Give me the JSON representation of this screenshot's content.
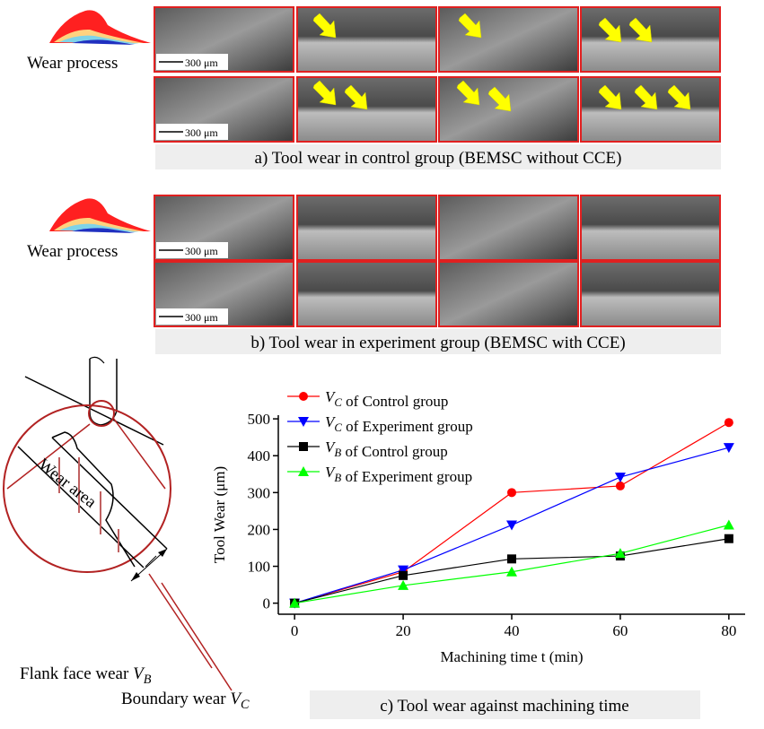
{
  "panels": [
    {
      "side_label": "Wear process",
      "scale_labels": [
        "300 μm",
        "300 μm"
      ],
      "caption": "a) Tool wear in control group (BEMSC without CCE)"
    },
    {
      "side_label": "Wear process",
      "scale_labels": [
        "300 μm",
        "300 μm"
      ],
      "caption": "b) Tool wear in experiment group (BEMSC with CCE)"
    }
  ],
  "diagram": {
    "wear_area": "Wear area",
    "flank_label": "Flank face wear VB",
    "boundary_label": "Boundary wear VC"
  },
  "chart_data": {
    "type": "line",
    "caption": "c) Tool wear against machining time",
    "x_label": "Machining time t (min)",
    "y_label": "Tool Wear (μm)",
    "x": [
      0,
      20,
      40,
      60,
      80
    ],
    "series": [
      {
        "name": "VC of Control group",
        "color": "#ff0000",
        "marker": "circle",
        "values": [
          0,
          85,
          300,
          318,
          490
        ]
      },
      {
        "name": "VC of Experiment group",
        "color": "#0000ff",
        "marker": "triangle-down",
        "values": [
          0,
          90,
          212,
          342,
          422
        ]
      },
      {
        "name": "VB of Control group",
        "color": "#000000",
        "marker": "square",
        "values": [
          0,
          75,
          120,
          128,
          175
        ]
      },
      {
        "name": "VB of Experiment group",
        "color": "#00ff00",
        "marker": "triangle-up",
        "values": [
          0,
          48,
          85,
          135,
          212
        ]
      }
    ],
    "xlim": [
      -3,
      83
    ],
    "ylim": [
      -30,
      510
    ],
    "xticks": [
      0,
      20,
      40,
      60,
      80
    ],
    "yticks": [
      0,
      100,
      200,
      300,
      400,
      500
    ]
  }
}
